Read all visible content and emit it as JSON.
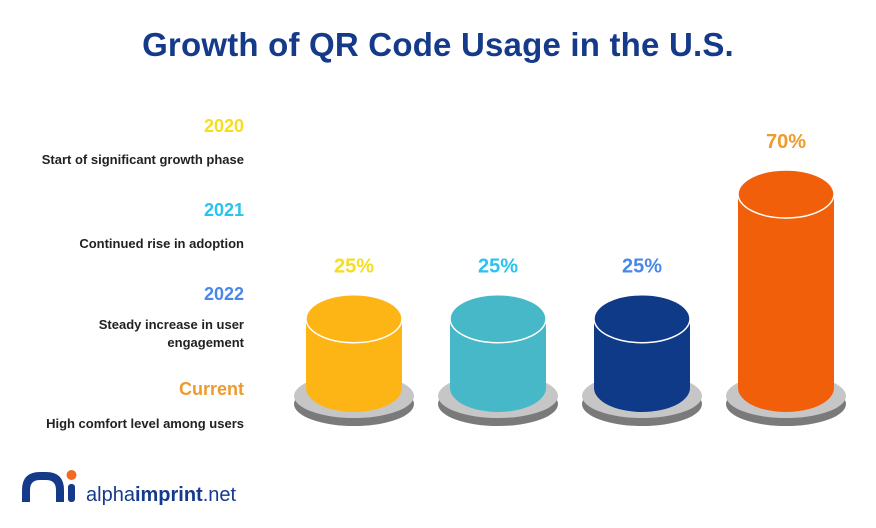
{
  "title": "Growth of QR Code Usage in the U.S.",
  "legend": [
    {
      "year": "2020",
      "description": "Start of significant growth phase",
      "color": "#f7dd1f"
    },
    {
      "year": "2021",
      "description": "Continued rise in adoption",
      "color": "#28c3ee"
    },
    {
      "year": "2022",
      "description": "Steady increase in user engagement",
      "color": "#4a88e8"
    },
    {
      "year": "Current",
      "description": "High comfort level among users",
      "color": "#ef9a2d"
    }
  ],
  "chart_data": {
    "type": "bar",
    "style": "3d-cylinder",
    "categories": [
      "2020",
      "2021",
      "2022",
      "Current"
    ],
    "values": [
      25,
      25,
      25,
      70
    ],
    "value_labels": [
      "25%",
      "25%",
      "25%",
      "70%"
    ],
    "bar_colors": [
      "#fdb515",
      "#47b8c8",
      "#0e3a87",
      "#f25f0a"
    ],
    "label_colors": [
      "#f7dd1f",
      "#28c3ee",
      "#4a88e8",
      "#ef9a2d"
    ],
    "ylim": [
      0,
      100
    ],
    "grid": false,
    "legend_position": "left"
  },
  "logo": {
    "text_part1": "alpha",
    "text_part2": "imprint",
    "text_part3": ".net",
    "mark_color": "#153a8a",
    "dot_color": "#f26a21"
  }
}
